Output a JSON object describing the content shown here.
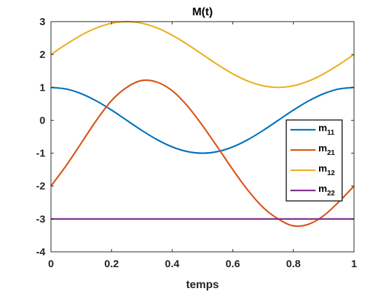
{
  "chart_data": {
    "type": "line",
    "title": "M(t)",
    "xlabel": "temps",
    "ylabel": "",
    "xlim": [
      0,
      1
    ],
    "ylim": [
      -4,
      3
    ],
    "x_ticks": [
      0,
      0.2,
      0.4,
      0.6,
      0.8,
      1
    ],
    "x_tick_labels": [
      "0",
      "0.2",
      "0.4",
      "0.6",
      "0.8",
      "1"
    ],
    "y_ticks": [
      -4,
      -3,
      -2,
      -1,
      0,
      1,
      2,
      3
    ],
    "y_tick_labels": [
      "-4",
      "-3",
      "-2",
      "-1",
      "0",
      "1",
      "2",
      "3"
    ],
    "grid": false,
    "legend_position": "right-middle",
    "x": [
      0,
      0.05,
      0.1,
      0.15,
      0.2,
      0.25,
      0.3,
      0.35,
      0.4,
      0.45,
      0.5,
      0.55,
      0.6,
      0.65,
      0.7,
      0.75,
      0.8,
      0.85,
      0.9,
      0.95,
      1
    ],
    "series": [
      {
        "name_base": "m",
        "name_sub": "11",
        "color": "#0072BD",
        "values": [
          1.0,
          0.951,
          0.809,
          0.588,
          0.309,
          0.0,
          -0.309,
          -0.588,
          -0.809,
          -0.951,
          -1.0,
          -0.951,
          -0.809,
          -0.588,
          -0.309,
          0.0,
          0.309,
          0.588,
          0.809,
          0.951,
          1.0
        ]
      },
      {
        "name_base": "m",
        "name_sub": "21",
        "color": "#D95319",
        "values": [
          -2.0,
          -1.381,
          -0.692,
          0.0,
          0.6,
          1.0,
          1.21,
          1.16,
          0.9,
          0.44,
          -0.16,
          -0.82,
          -1.5,
          -2.13,
          -2.65,
          -3.0,
          -3.21,
          -3.16,
          -2.9,
          -2.48,
          -2.0
        ]
      },
      {
        "name_base": "m",
        "name_sub": "12",
        "color": "#EDB120",
        "values": [
          2.0,
          2.309,
          2.588,
          2.809,
          2.951,
          3.0,
          2.951,
          2.809,
          2.588,
          2.309,
          2.0,
          1.691,
          1.412,
          1.191,
          1.049,
          1.0,
          1.049,
          1.191,
          1.412,
          1.691,
          2.0
        ]
      },
      {
        "name_base": "m",
        "name_sub": "22",
        "color": "#7E2F8E",
        "values": [
          -3,
          -3,
          -3,
          -3,
          -3,
          -3,
          -3,
          -3,
          -3,
          -3,
          -3,
          -3,
          -3,
          -3,
          -3,
          -3,
          -3,
          -3,
          -3,
          -3,
          -3
        ]
      }
    ]
  }
}
